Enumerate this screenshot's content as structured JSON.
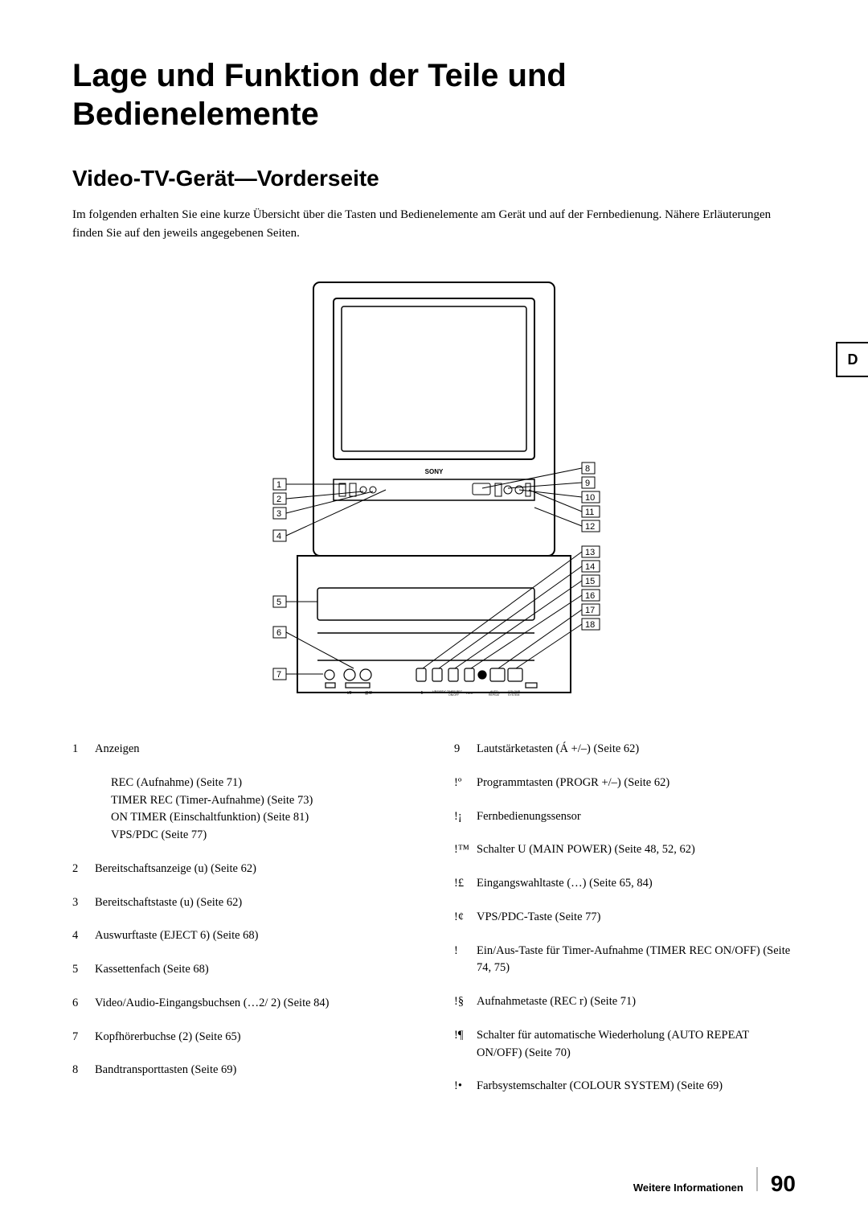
{
  "title": "Lage und Funktion der Teile und Bedienelemente",
  "subtitle": "Video-TV-Gerät—Vorderseite",
  "intro": "Im folgenden erhalten Sie eine kurze Übersicht über die Tasten und Bedienelemente am Gerät und auf der Fernbedienung. Nähere Erläuterungen finden Sie auf den jeweils angegebenen Seiten.",
  "side_tab": "D",
  "diagram": {
    "left_callouts": [
      "1",
      "2",
      "3",
      "4",
      "5",
      "6",
      "7"
    ],
    "right_callouts": [
      "8",
      "9",
      "10",
      "11",
      "12",
      "13",
      "14",
      "15",
      "16",
      "17",
      "18"
    ],
    "brand": "SONY",
    "panel_labels": [
      "t/2",
      "-@/2",
      "-5",
      "VPS/PDC",
      "TIMER REC ON/OFF",
      "REC",
      "AUTO REPEAT",
      "COLOUR SYSTEM"
    ]
  },
  "left_list": [
    {
      "num": "1",
      "text": "Anzeigen",
      "sub": [
        "REC (Aufnahme) (Seite 71)",
        "TIMER REC (Timer-Aufnahme) (Seite 73)",
        "ON TIMER (Einschaltfunktion) (Seite 81)",
        "VPS/PDC (Seite 77)"
      ]
    },
    {
      "num": "2",
      "text": "Bereitschaftsanzeige (u) (Seite 62)"
    },
    {
      "num": "3",
      "text": "Bereitschaftstaste (u) (Seite 62)"
    },
    {
      "num": "4",
      "text": "Auswurftaste (EJECT 6) (Seite 68)"
    },
    {
      "num": "5",
      "text": "Kassettenfach (Seite 68)"
    },
    {
      "num": "6",
      "text": "Video/Audio-Eingangsbuchsen (…2/ 2) (Seite 84)"
    },
    {
      "num": "7",
      "text": "Kopfhörerbuchse (2) (Seite 65)"
    },
    {
      "num": "8",
      "text": "Bandtransporttasten (Seite 69)"
    }
  ],
  "right_list": [
    {
      "num": "9",
      "text": "Lautstärketasten (Á +/–) (Seite 62)"
    },
    {
      "num": "!º",
      "text": "Programmtasten (PROGR +/–) (Seite 62)"
    },
    {
      "num": "!¡",
      "text": "Fernbedienungssensor"
    },
    {
      "num": "!™",
      "text": "Schalter U (MAIN POWER) (Seite 48, 52, 62)"
    },
    {
      "num": "!£",
      "text": "Eingangswahltaste (…) (Seite 65, 84)"
    },
    {
      "num": "!¢",
      "text": "VPS/PDC-Taste (Seite 77)"
    },
    {
      "num": "!",
      "text": "Ein/Aus-Taste für Timer-Aufnahme (TIMER REC ON/OFF) (Seite 74, 75)"
    },
    {
      "num": "!§",
      "text": "Aufnahmetaste (REC r) (Seite 71)"
    },
    {
      "num": "!¶",
      "text": "Schalter für automatische Wiederholung (AUTO REPEAT ON/OFF) (Seite 70)"
    },
    {
      "num": "!•",
      "text": "Farbsystemschalter (COLOUR SYSTEM) (Seite 69)"
    }
  ],
  "footer": {
    "label": "Weitere Informationen",
    "page": "90"
  }
}
